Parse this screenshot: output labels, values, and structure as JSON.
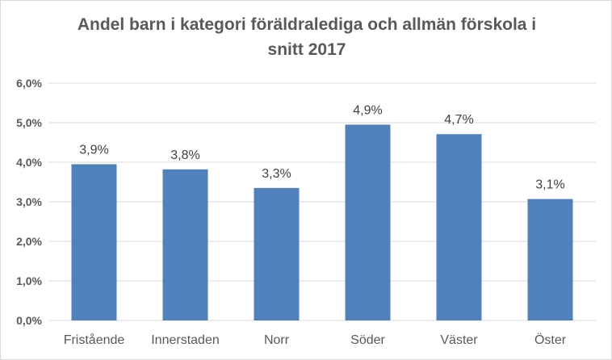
{
  "chart_data": {
    "type": "bar",
    "title_lines": [
      "Andel barn i kategori föräldralediga och allmän förskola i",
      "snitt 2017"
    ],
    "categories": [
      "Fristående",
      "Innerstaden",
      "Norr",
      "Söder",
      "Väster",
      "Öster"
    ],
    "values": [
      3.95,
      3.82,
      3.35,
      4.95,
      4.71,
      3.07
    ],
    "data_labels": [
      "3,9%",
      "3,8%",
      "3,3%",
      "4,9%",
      "4,7%",
      "3,1%"
    ],
    "yticks": [
      0,
      1,
      2,
      3,
      4,
      5,
      6
    ],
    "ytick_labels": [
      "0,0%",
      "1,0%",
      "2,0%",
      "3,0%",
      "4,0%",
      "5,0%",
      "6,0%"
    ],
    "ylim": [
      0,
      6
    ],
    "grid": true,
    "legend": "none",
    "colors": {
      "bar": "#4f81bd",
      "grid": "#d9d9d9",
      "text": "#595959"
    }
  }
}
